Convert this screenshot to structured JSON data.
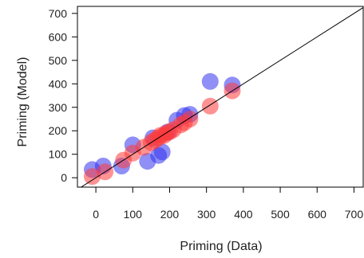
{
  "chart_data": {
    "type": "scatter",
    "xlabel": "Priming (Data)",
    "ylabel": "Priming (Model)",
    "xlim": [
      -50,
      725
    ],
    "ylim": [
      -40,
      730
    ],
    "x_ticks": [
      0,
      100,
      200,
      300,
      400,
      500,
      600,
      700
    ],
    "y_ticks": [
      0,
      100,
      200,
      300,
      400,
      500,
      600,
      700
    ],
    "reference_line": "y = x",
    "series": [
      {
        "color": "#3333ee",
        "points": [
          {
            "x": -10,
            "y": 35
          },
          {
            "x": 20,
            "y": 50
          },
          {
            "x": 70,
            "y": 50
          },
          {
            "x": 100,
            "y": 140
          },
          {
            "x": 140,
            "y": 70
          },
          {
            "x": 155,
            "y": 170
          },
          {
            "x": 170,
            "y": 95
          },
          {
            "x": 180,
            "y": 110
          },
          {
            "x": 195,
            "y": 195
          },
          {
            "x": 220,
            "y": 245
          },
          {
            "x": 240,
            "y": 265
          },
          {
            "x": 255,
            "y": 270
          },
          {
            "x": 310,
            "y": 410
          },
          {
            "x": 370,
            "y": 395
          }
        ]
      },
      {
        "color": "#ff3b3b",
        "points": [
          {
            "x": -10,
            "y": 5
          },
          {
            "x": 25,
            "y": 25
          },
          {
            "x": 75,
            "y": 75
          },
          {
            "x": 100,
            "y": 105
          },
          {
            "x": 130,
            "y": 130
          },
          {
            "x": 150,
            "y": 150
          },
          {
            "x": 160,
            "y": 160
          },
          {
            "x": 170,
            "y": 170
          },
          {
            "x": 175,
            "y": 180
          },
          {
            "x": 185,
            "y": 180
          },
          {
            "x": 190,
            "y": 190
          },
          {
            "x": 200,
            "y": 195
          },
          {
            "x": 210,
            "y": 205
          },
          {
            "x": 230,
            "y": 225
          },
          {
            "x": 240,
            "y": 235
          },
          {
            "x": 255,
            "y": 250
          },
          {
            "x": 310,
            "y": 305
          },
          {
            "x": 370,
            "y": 370
          }
        ]
      }
    ]
  }
}
